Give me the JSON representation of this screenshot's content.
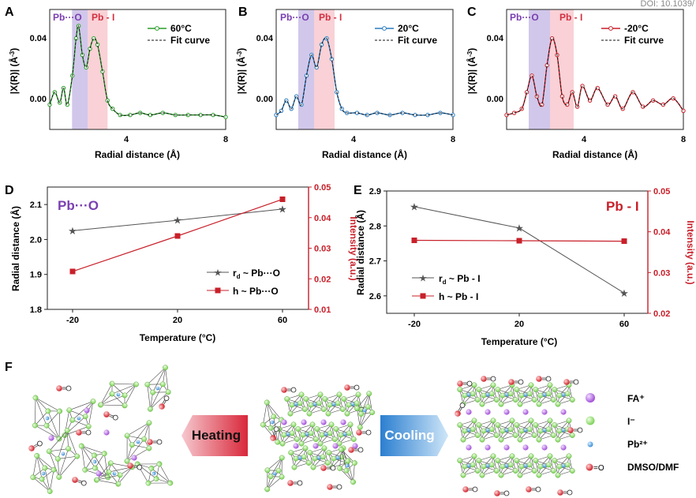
{
  "doi": "DOI: 10.1039/",
  "colors": {
    "green": "#2a9d2a",
    "blue": "#2b7bbf",
    "red": "#c8202a",
    "purple_band": "#c9bde6",
    "pink_band": "#f8c9cf",
    "purple_text": "#7a3fb0",
    "pink_text": "#d23040",
    "gray": "#555555"
  },
  "panels": {
    "A": {
      "letter": "A",
      "legend": "60°C",
      "fit": "Fit curve",
      "band1": "Pb···O",
      "band2": "Pb - I"
    },
    "B": {
      "letter": "B",
      "legend": "20°C",
      "fit": "Fit curve",
      "band1": "Pb···O",
      "band2": "Pb - I"
    },
    "C": {
      "letter": "C",
      "legend": "-20°C",
      "fit": "Fit curve",
      "band1": "Pb···O",
      "band2": "Pb - I"
    },
    "top_xlabel": "Radial distance (Å)",
    "top_ylabel": "|X(R)| (Å",
    "top_ylabel_sup": "-3",
    "top_ylabel_end": ")",
    "D": {
      "letter": "D",
      "title": "Pb···O",
      "xlabel": "Temperature (°C)",
      "ylabel_left": "Radial distance (Å)",
      "ylabel_right": "Intensity (a.u.)",
      "legend_rd": "~ Pb···O",
      "legend_h": "h ~ Pb···O",
      "rd_prefix": "r",
      "rd_sub": "d"
    },
    "E": {
      "letter": "E",
      "title": "Pb - I",
      "xlabel": "Temperature (°C)",
      "ylabel_left": "Radial distance (Å)",
      "ylabel_right": "Intensity (a.u.)",
      "legend_rd": "~ Pb - I",
      "legend_h": "h ~ Pb - I",
      "rd_prefix": "r",
      "rd_sub": "d"
    },
    "F": {
      "letter": "F",
      "heating": "Heating",
      "cooling": "Cooling",
      "legend": [
        {
          "label": "FA⁺",
          "icon": "purple-sphere"
        },
        {
          "label": "I⁻",
          "icon": "green-sphere"
        },
        {
          "label": "Pb²⁺",
          "icon": "blue-sphere"
        },
        {
          "label": "DMSO/DMF",
          "icon": "red-oxygen"
        }
      ],
      "oxygen_label": "=O"
    }
  },
  "chart_data": [
    {
      "type": "line",
      "panel": "A",
      "title": "",
      "xlabel": "Radial distance (Å)",
      "ylabel": "|X(R)| (Å-3)",
      "xlim": [
        1,
        8
      ],
      "ylim": [
        -0.006,
        0.052
      ],
      "xticks": [
        "4",
        "8"
      ],
      "yticks": [
        "0.00",
        "0.04"
      ],
      "series": [
        {
          "name": "60°C",
          "x": [
            1.0,
            1.2,
            1.4,
            1.55,
            1.7,
            1.9,
            2.05,
            2.15,
            2.3,
            2.45,
            2.6,
            2.75,
            2.9,
            3.1,
            3.3,
            3.5,
            3.8,
            4.2,
            4.6,
            5.0,
            5.5,
            6.0,
            6.5,
            7.0,
            7.5,
            8.0
          ],
          "y": [
            0.006,
            0.012,
            0.007,
            0.014,
            0.006,
            0.02,
            0.038,
            0.044,
            0.03,
            0.024,
            0.033,
            0.038,
            0.035,
            0.022,
            0.008,
            0.004,
            0.001,
            0.001,
            0.002,
            0.001,
            0.002,
            0.001,
            0.001,
            0.001,
            0.001,
            0.0
          ]
        },
        {
          "name": "Fit curve",
          "x": [
            1.0,
            1.2,
            1.4,
            1.55,
            1.7,
            1.9,
            2.05,
            2.15,
            2.3,
            2.45,
            2.6,
            2.75,
            2.9,
            3.1,
            3.3,
            3.5,
            3.8,
            4.2,
            4.6,
            5.0,
            5.5,
            6.0,
            6.5,
            7.0,
            7.5,
            8.0
          ],
          "y": [
            0.006,
            0.012,
            0.007,
            0.014,
            0.006,
            0.02,
            0.038,
            0.044,
            0.03,
            0.024,
            0.033,
            0.038,
            0.035,
            0.022,
            0.008,
            0.004,
            0.001,
            0.001,
            0.002,
            0.001,
            0.002,
            0.001,
            0.001,
            0.001,
            0.001,
            0.0
          ]
        }
      ]
    },
    {
      "type": "line",
      "panel": "B",
      "title": "",
      "xlabel": "Radial distance (Å)",
      "ylabel": "|X(R)| (Å-3)",
      "xlim": [
        1,
        8
      ],
      "ylim": [
        -0.006,
        0.052
      ],
      "xticks": [
        "4",
        "8"
      ],
      "yticks": [
        "0.00",
        "0.04"
      ],
      "series": [
        {
          "name": "20°C",
          "x": [
            1.0,
            1.2,
            1.4,
            1.6,
            1.8,
            2.0,
            2.2,
            2.4,
            2.6,
            2.8,
            3.0,
            3.2,
            3.4,
            3.6,
            3.8,
            4.2,
            4.6,
            5.0,
            5.5,
            6.0,
            6.5,
            7.0,
            7.5,
            8.0
          ],
          "y": [
            0.001,
            0.003,
            0.008,
            0.004,
            0.01,
            0.006,
            0.02,
            0.03,
            0.024,
            0.035,
            0.038,
            0.028,
            0.012,
            0.004,
            0.002,
            0.002,
            0.001,
            0.002,
            0.001,
            0.002,
            0.001,
            0.001,
            0.002,
            0.001
          ]
        },
        {
          "name": "Fit curve",
          "x": [
            1.0,
            1.2,
            1.4,
            1.6,
            1.8,
            2.0,
            2.2,
            2.4,
            2.6,
            2.8,
            3.0,
            3.2,
            3.4,
            3.6,
            3.8,
            4.2,
            4.6,
            5.0,
            5.5,
            6.0,
            6.5,
            7.0,
            7.5,
            8.0
          ],
          "y": [
            0.001,
            0.003,
            0.008,
            0.004,
            0.01,
            0.006,
            0.02,
            0.03,
            0.024,
            0.035,
            0.038,
            0.028,
            0.012,
            0.004,
            0.002,
            0.002,
            0.001,
            0.002,
            0.001,
            0.002,
            0.001,
            0.001,
            0.002,
            0.001
          ]
        }
      ]
    },
    {
      "type": "line",
      "panel": "C",
      "title": "",
      "xlabel": "Radial distance (Å)",
      "ylabel": "|X(R)| (Å-3)",
      "xlim": [
        1,
        8
      ],
      "ylim": [
        -0.006,
        0.052
      ],
      "xticks": [
        "4",
        "8"
      ],
      "yticks": [
        "0.00",
        "0.04"
      ],
      "series": [
        {
          "name": "-20°C",
          "x": [
            1.0,
            1.3,
            1.6,
            1.8,
            2.0,
            2.2,
            2.4,
            2.6,
            2.8,
            3.0,
            3.2,
            3.4,
            3.6,
            3.8,
            4.0,
            4.3,
            4.6,
            5.0,
            5.3,
            5.6,
            6.0,
            6.4,
            6.8,
            7.2,
            7.6,
            8.0
          ],
          "y": [
            0.001,
            0.002,
            0.004,
            0.012,
            0.02,
            0.01,
            0.006,
            0.025,
            0.038,
            0.03,
            0.01,
            0.006,
            0.012,
            0.005,
            0.015,
            0.008,
            0.014,
            0.006,
            0.01,
            0.004,
            0.012,
            0.005,
            0.008,
            0.006,
            0.009,
            0.003
          ]
        },
        {
          "name": "Fit curve",
          "x": [
            1.0,
            1.3,
            1.6,
            1.8,
            2.0,
            2.2,
            2.4,
            2.6,
            2.8,
            3.0,
            3.2,
            3.4,
            3.6,
            3.8,
            4.0,
            4.3,
            4.6,
            5.0,
            5.3,
            5.6,
            6.0,
            6.4,
            6.8,
            7.2,
            7.6,
            8.0
          ],
          "y": [
            0.001,
            0.002,
            0.004,
            0.012,
            0.02,
            0.01,
            0.006,
            0.025,
            0.038,
            0.03,
            0.01,
            0.006,
            0.012,
            0.005,
            0.015,
            0.008,
            0.014,
            0.006,
            0.01,
            0.004,
            0.012,
            0.005,
            0.008,
            0.006,
            0.009,
            0.003
          ]
        }
      ]
    },
    {
      "type": "line",
      "panel": "D",
      "title": "Pb···O",
      "categories": [
        "-20",
        "20",
        "60"
      ],
      "xlabel": "Temperature (°C)",
      "ylabel": "Radial distance (Å)",
      "ylabel_right": "Intensity (a.u.)",
      "ylim": [
        1.8,
        2.15
      ],
      "ylim_right": [
        0.01,
        0.05
      ],
      "yticks": [
        "1.8",
        "1.9",
        "2.0",
        "2.1"
      ],
      "yticks_right": [
        "0.01",
        "0.02",
        "0.03",
        "0.04",
        "0.05"
      ],
      "series": [
        {
          "name": "rd ~ Pb···O",
          "axis": "left",
          "values": [
            2.025,
            2.055,
            2.087
          ]
        },
        {
          "name": "h ~ Pb···O",
          "axis": "right",
          "values": [
            0.0224,
            0.034,
            0.046
          ]
        }
      ]
    },
    {
      "type": "line",
      "panel": "E",
      "title": "Pb - I",
      "categories": [
        "-20",
        "20",
        "60"
      ],
      "xlabel": "Temperature (°C)",
      "ylabel": "Radial distance (Å)",
      "ylabel_right": "Intensity (a.u.)",
      "ylim": [
        2.55,
        2.9
      ],
      "ylim_right": [
        0.02,
        0.05
      ],
      "yticks": [
        "2.6",
        "2.7",
        "2.8",
        "2.9"
      ],
      "yticks_right": [
        "0.02",
        "0.03",
        "0.04",
        "0.05"
      ],
      "series": [
        {
          "name": "rd ~ Pb - I",
          "axis": "left",
          "values": [
            2.855,
            2.794,
            2.608
          ]
        },
        {
          "name": "h ~ Pb - I",
          "axis": "right",
          "values": [
            0.0379,
            0.0378,
            0.0377
          ]
        }
      ]
    }
  ]
}
